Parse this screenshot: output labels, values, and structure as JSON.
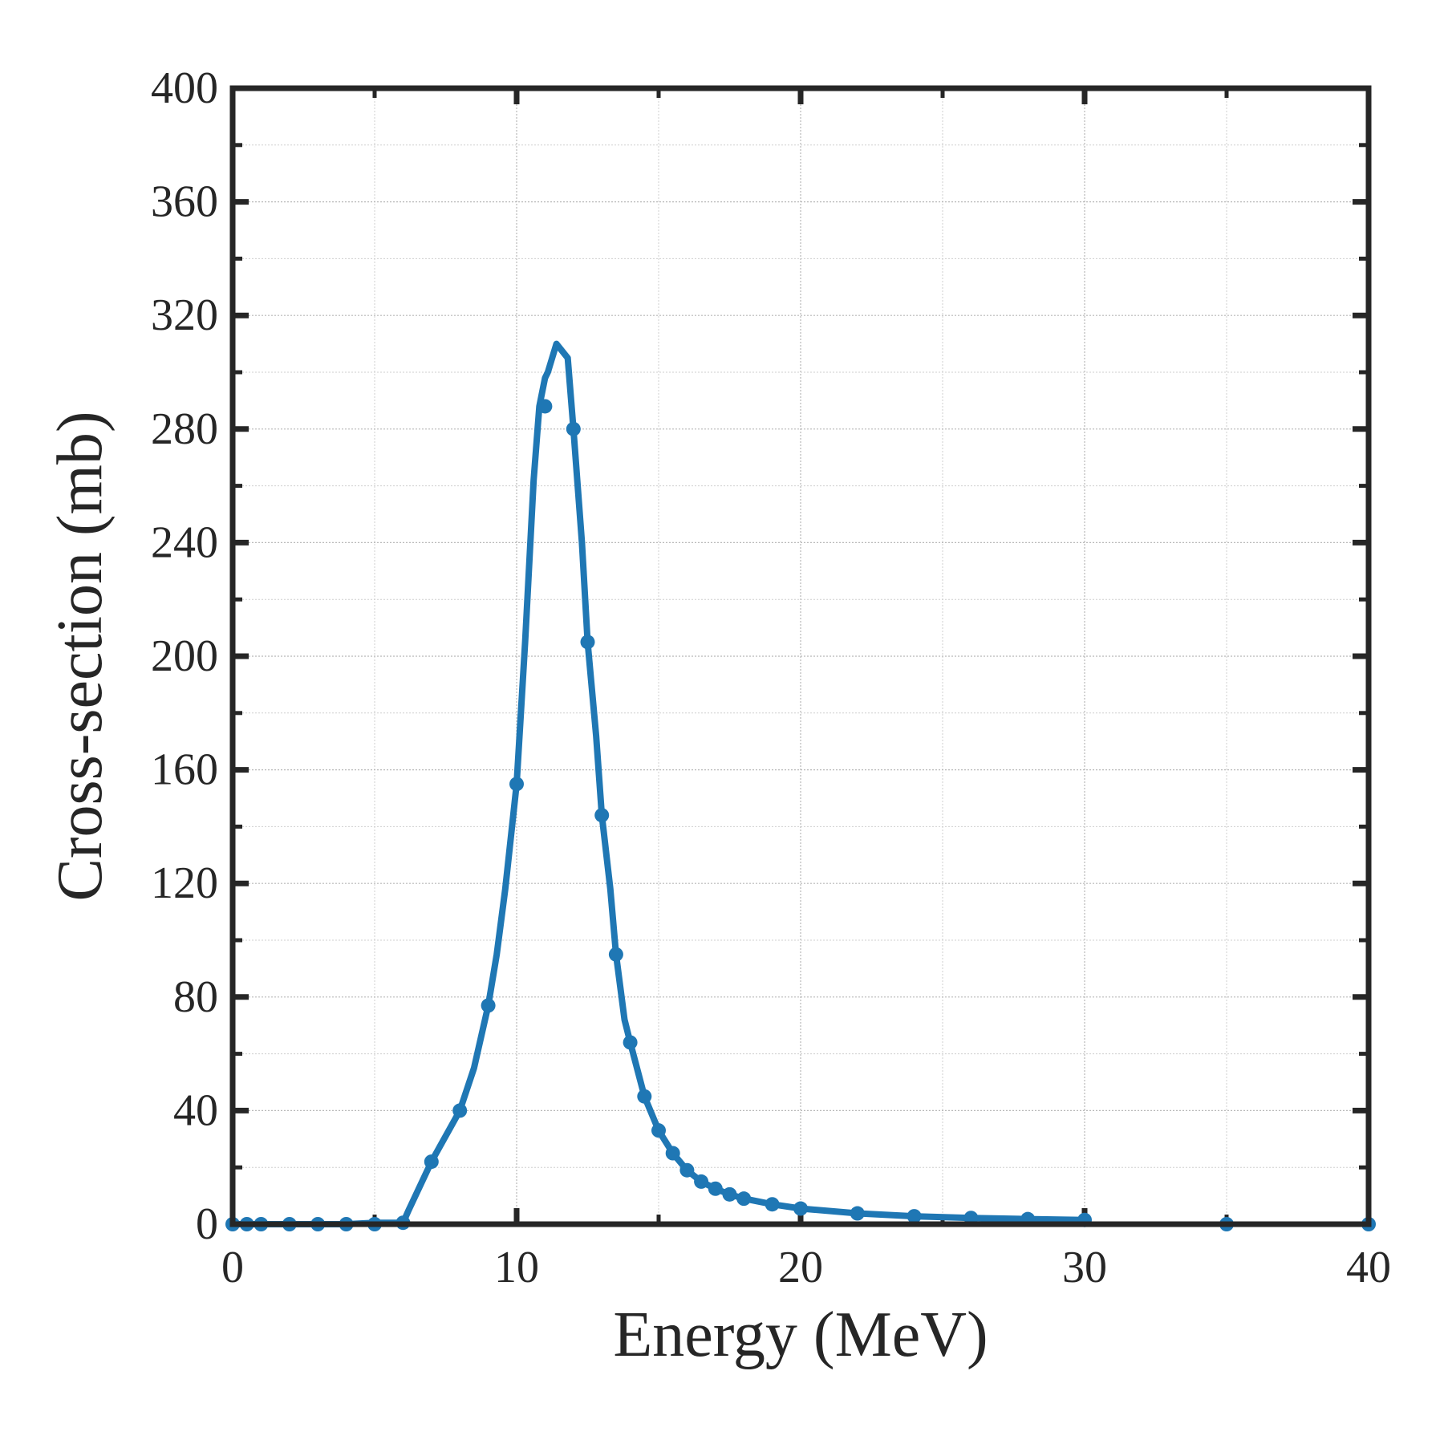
{
  "colors": {
    "series": "#1f77b4",
    "axis": "#262626"
  },
  "chart_data": {
    "type": "line",
    "title": "",
    "xlabel": "Energy (MeV)",
    "ylabel": "Cross-section (mb)",
    "xlim": [
      0,
      40
    ],
    "ylim": [
      0,
      400
    ],
    "xticks": [
      0,
      10,
      20,
      30,
      40
    ],
    "xtick_labels": [
      "0",
      "10",
      "20",
      "30",
      "40"
    ],
    "yticks": [
      0,
      40,
      80,
      120,
      160,
      200,
      240,
      280,
      320,
      360,
      400
    ],
    "ytick_labels": [
      "0",
      "40",
      "80",
      "120",
      "160",
      "200",
      "240",
      "280",
      "320",
      "360",
      "400"
    ],
    "grid": true,
    "series": [
      {
        "marker": "circle",
        "line": {
          "x": [
            0,
            1,
            2,
            3,
            4,
            5,
            5.6,
            6,
            6.2,
            7,
            8,
            8.5,
            9,
            9.3,
            9.6,
            10,
            10.3,
            10.6,
            10.8,
            11,
            11.1,
            11.4,
            11.8,
            12,
            12.3,
            12.5,
            12.8,
            13,
            13.3,
            13.5,
            13.8,
            14,
            14.5,
            15,
            15.5,
            16,
            16.5,
            17,
            17.5,
            18,
            19,
            20,
            22,
            24,
            26,
            28,
            30
          ],
          "y": [
            0,
            0,
            0,
            0,
            0,
            0.5,
            0.5,
            0.5,
            5,
            22,
            40,
            55,
            77,
            95,
            118,
            155,
            205,
            262,
            288,
            298,
            300,
            310,
            305,
            280,
            240,
            205,
            172,
            144,
            118,
            95,
            72,
            64,
            45,
            33,
            25,
            19,
            15,
            12.5,
            10.5,
            9,
            7,
            5.5,
            3.8,
            2.8,
            2.2,
            1.8,
            1.5
          ]
        },
        "points": {
          "x": [
            0,
            0.5,
            1,
            2,
            3,
            4,
            5,
            6,
            7,
            8,
            9,
            10,
            11,
            12,
            12.5,
            13,
            13.5,
            14,
            14.5,
            15,
            15.5,
            16,
            16.5,
            17,
            17.5,
            18,
            19,
            20,
            22,
            24,
            26,
            28,
            30,
            35,
            40
          ],
          "y": [
            0,
            0,
            0,
            0,
            0,
            0,
            0,
            0.5,
            22,
            40,
            77,
            155,
            288,
            280,
            205,
            144,
            95,
            64,
            45,
            33,
            25,
            19,
            15,
            12.5,
            10.5,
            9,
            7,
            5.5,
            3.8,
            2.8,
            2.2,
            1.8,
            1.5,
            0,
            0
          ]
        }
      }
    ]
  }
}
